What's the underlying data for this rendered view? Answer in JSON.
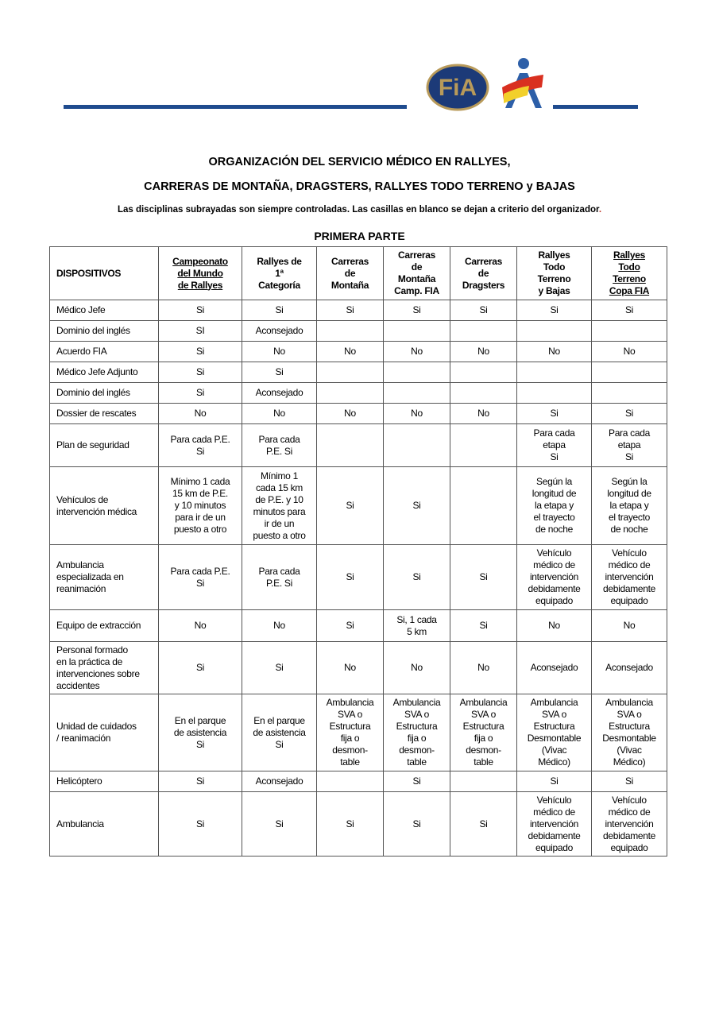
{
  "logos": {
    "fia": "FIA",
    "rfeda": "A"
  },
  "title_line1": "ORGANIZACIÓN DEL SERVICIO MÉDICO EN RALLYES,",
  "title_line2": "CARRERAS DE MONTAÑA, DRAGSTERS, RALLYES TODO TERRENO y BAJAS",
  "subtitle": "Las disciplinas subrayadas son siempre controladas.  Las casillas en blanco se dejan a criterio del organizador",
  "subtitle_end": ".",
  "section": "PRIMERA PARTE",
  "colors": {
    "rule": "#1f4b8e"
  },
  "headers": [
    {
      "text": "DISPOSITIVOS",
      "underline": false
    },
    {
      "text": "Campeonato\ndel Mundo\nde Rallyes",
      "underline": true
    },
    {
      "text": "Rallyes de\n1ª\nCategoría",
      "underline": false
    },
    {
      "text": "Carreras\nde\nMontaña",
      "underline": false
    },
    {
      "text": "Carreras\nde\nMontaña\nCamp. FIA",
      "underline": false
    },
    {
      "text": "Carreras\nde\nDragsters",
      "underline": false
    },
    {
      "text": "Rallyes\nTodo\nTerreno\ny  Bajas",
      "underline": false
    },
    {
      "text": "Rallyes\nTodo\nTerreno\nCopa FIA",
      "underline": true
    }
  ],
  "rows": [
    [
      "Médico Jefe",
      "Si",
      "Si",
      "Si",
      "Si",
      "Si",
      "Si",
      "Si"
    ],
    [
      "Dominio del  inglés",
      "SI",
      "Aconsejado",
      "",
      "",
      "",
      "",
      ""
    ],
    [
      "Acuerdo FIA",
      "Si",
      "No",
      "No",
      "No",
      "No",
      "No",
      "No"
    ],
    [
      "Médico Jefe Adjunto",
      "Si",
      "Si",
      "",
      "",
      "",
      "",
      ""
    ],
    [
      "Dominio del  inglés",
      "Si",
      "Aconsejado",
      "",
      "",
      "",
      "",
      ""
    ],
    [
      "Dossier de rescates",
      "No",
      "No",
      "No",
      "No",
      "No",
      "Si",
      "Si"
    ],
    [
      "Plan de seguridad",
      "Para cada P.E.\nSi",
      "Para cada\nP.E. Si",
      "",
      "",
      "",
      "Para cada\netapa\nSi",
      "Para cada\netapa\nSi"
    ],
    [
      "Vehículos de\nintervención  médica",
      "Mínimo 1 cada\n15 km de P.E.\ny 10 minutos\npara ir de un\npuesto a otro",
      "Mínimo 1\ncada 15 km\nde P.E. y 10\nminutos para\nir de un\npuesto a otro",
      "Si",
      "Si",
      "",
      "Según la\nlongitud de\nla etapa y\nel trayecto\nde noche",
      "Según la\nlongitud de\nla etapa y\nel trayecto\nde noche"
    ],
    [
      "Ambulancia\nespecializada  en\nreanimación",
      "Para cada P.E.\nSi",
      "Para cada\nP.E.   Si",
      "Si",
      "Si",
      "Si",
      "Vehículo\nmédico de\nintervención\ndebidamente\nequipado",
      "Vehículo\nmédico de\nintervención\ndebidamente\nequipado"
    ],
    [
      "Equipo de extracción",
      "No",
      "No",
      "Si",
      "Si, 1 cada\n5 km",
      "Si",
      "No",
      "No"
    ],
    [
      "Personal formado\nen la práctica de\nintervenciones sobre\naccidentes",
      "Si",
      "Si",
      "No",
      "No",
      "No",
      "Aconsejado",
      "Aconsejado"
    ],
    [
      "Unidad de cuidados\n/ reanimación",
      "En el parque\nde asistencia\nSi",
      "En el parque\nde asistencia\nSi",
      "Ambulancia\nSVA o\nEstructura\nfija o\ndesmon-\ntable",
      "Ambulancia\nSVA o\nEstructura\nfija o\ndesmon-\ntable",
      "Ambulancia\nSVA o\nEstructura\nfija o\ndesmon-\ntable",
      "Ambulancia\nSVA o\nEstructura\nDesmontable\n(Vivac\nMédico)",
      "Ambulancia\nSVA o\nEstructura\nDesmontable\n(Vivac\nMédico)"
    ],
    [
      "Helicóptero",
      "Si",
      "Aconsejado",
      "",
      "Si",
      "",
      "Si",
      "Si"
    ],
    [
      "Ambulancia",
      "Si",
      "Si",
      "Si",
      "Si",
      "Si",
      "Vehículo\nmédico de\nintervención\ndebidamente\nequipado",
      "Vehículo\nmédico de\nintervención\ndebidamente\nequipado"
    ]
  ]
}
